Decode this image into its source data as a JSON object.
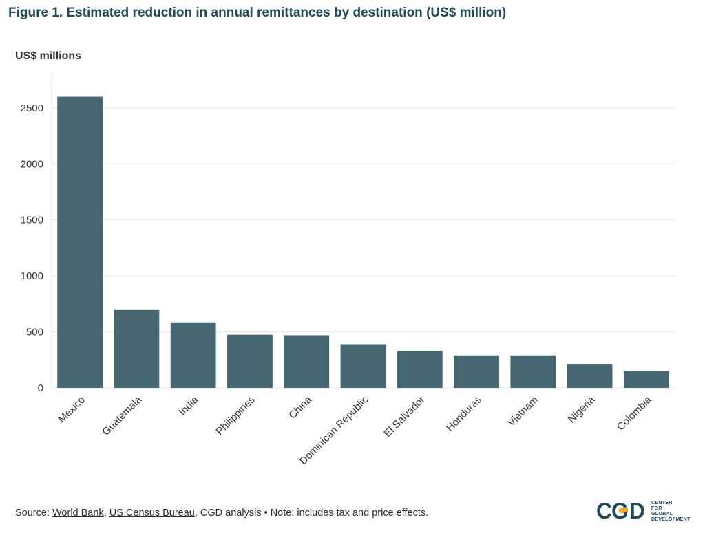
{
  "figure": {
    "title": "Figure 1. Estimated reduction in annual remittances by destination (US$ million)"
  },
  "chart_data": {
    "type": "bar",
    "title": "Figure 1. Estimated reduction in annual remittances by destination (US$ million)",
    "ylabel": "US$ millions",
    "xlabel": "",
    "categories": [
      "Mexico",
      "Guatemala",
      "India",
      "Philippines",
      "China",
      "Dominican Republic",
      "El Salvador",
      "Honduras",
      "Vietnam",
      "Nigeria",
      "Colombia"
    ],
    "values": [
      2600,
      695,
      585,
      475,
      470,
      390,
      330,
      290,
      290,
      215,
      150
    ],
    "ylim": [
      0,
      2800
    ],
    "yticks": [
      0,
      500,
      1000,
      1500,
      2000,
      2500
    ],
    "grid": true,
    "bar_color": "#466672",
    "grid_color": "#e3e3e3"
  },
  "source": {
    "prefix": "Source: ",
    "link1": "World Bank",
    "sep": ", ",
    "link2": "US Census Bureau",
    "rest": ", CGD analysis • Note: includes tax and price effects."
  },
  "logo": {
    "mark": "CGD",
    "line1": "CENTER",
    "line2": "FOR",
    "line3": "GLOBAL",
    "line4": "DEVELOPMENT",
    "color_dark": "#1f4a5a",
    "color_accent": "#f0a41c"
  }
}
